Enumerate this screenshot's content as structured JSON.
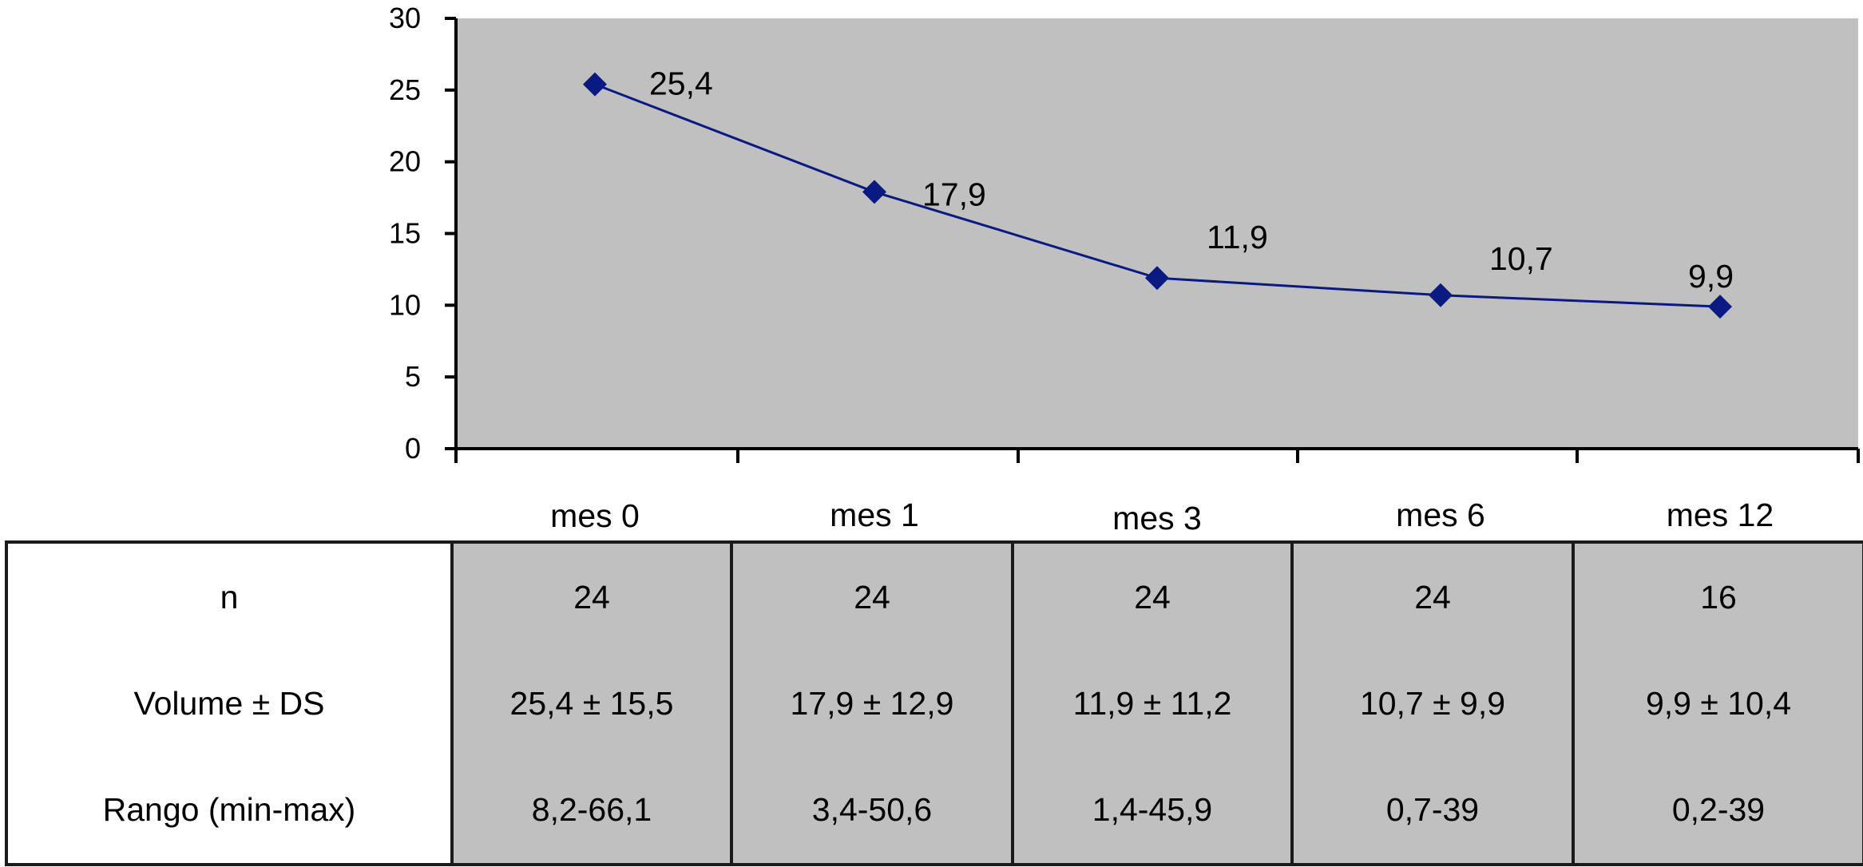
{
  "chart_data": {
    "type": "line",
    "categories": [
      "mes 0",
      "mes 1",
      "mes 3",
      "mes 6",
      "mes 12"
    ],
    "series": [
      {
        "values": [
          25.4,
          17.9,
          11.9,
          10.7,
          9.9
        ],
        "color": "#0a1a80"
      }
    ],
    "data_labels": [
      "25,4",
      "17,9",
      "11,9",
      "10,7",
      "9,9"
    ],
    "ylim": [
      0,
      30
    ],
    "yticks": [
      0,
      5,
      10,
      15,
      20,
      25,
      30
    ],
    "plot_background": "#c0c0c0",
    "marker": "diamond",
    "grid": false,
    "title": "",
    "xlabel": "",
    "ylabel": ""
  },
  "table": {
    "row_headers": [
      "n",
      "Volume ± DS",
      "Rango (min-max)"
    ],
    "columns": [
      {
        "n": "24",
        "volume": "25,4 ± 15,5",
        "rango": "8,2-66,1"
      },
      {
        "n": "24",
        "volume": "17,9 ± 12,9",
        "rango": "3,4-50,6"
      },
      {
        "n": "24",
        "volume": "11,9 ± 11,2",
        "rango": "1,4-45,9"
      },
      {
        "n": "24",
        "volume": "10,7 ± 9,9",
        "rango": "0,7-39"
      },
      {
        "n": "16",
        "volume": "9,9 ± 10,4",
        "rango": "0,2-39"
      }
    ]
  }
}
